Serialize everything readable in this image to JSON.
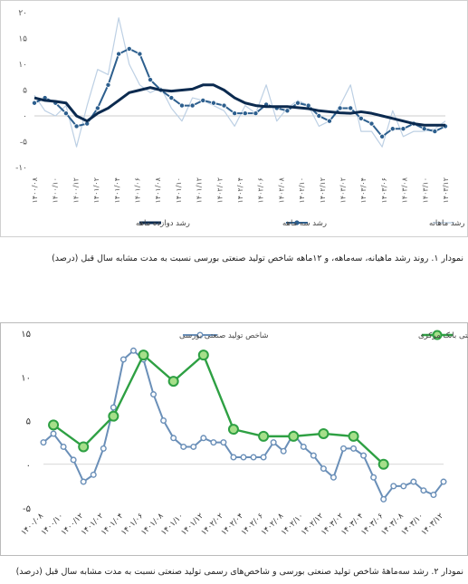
{
  "chart_data": [
    {
      "type": "line",
      "caption": "نمودار ۱. روند رشد ماهیانه، سه‌ماهه، و ۱۲ماهه شاخص تولید صنعتی بورسی نسبت به مدت مشابه سال قبل (درصد)",
      "y_ticks": [
        "۲۰",
        "۱۵",
        "۱۰",
        "۵",
        "۰",
        "-۵",
        "-۱۰"
      ],
      "y_values": [
        20,
        15,
        10,
        5,
        0,
        -5,
        -10
      ],
      "ylim": [
        -10,
        20
      ],
      "x_ticks": [
        "۱۴۰۰/۰۸",
        "۱۴۰۰/۱۰",
        "۱۴۰۰/۱۲",
        "۱۴۰۱/۰۲",
        "۱۴۰۱/۰۴",
        "۱۴۰۱/۰۶",
        "۱۴۰۱/۰۸",
        "۱۴۰۱/۱۰",
        "۱۴۰۱/۱۲",
        "۱۴۰۲/۰۲",
        "۱۴۰۲/۰۴",
        "۱۴۰۲/۰۶",
        "۱۴۰۲/۰۸",
        "۱۴۰۲/۱۰",
        "۱۴۰۲/۱۲",
        "۱۴۰۳/۰۲",
        "۱۴۰۳/۰۴",
        "۱۴۰۳/۰۶",
        "۱۴۰۳/۰۸",
        "۱۴۰۳/۱۰",
        "۱۴۰۳/۱۲"
      ],
      "legend_position": "bottom",
      "series": [
        {
          "name": "رشد دوازده ماهه",
          "color": "#0b2a4f",
          "style": "thick",
          "values": [
            3.5,
            3,
            2.8,
            2.5,
            0,
            -1,
            0.5,
            1.5,
            3,
            4.5,
            5,
            5.5,
            5,
            4.8,
            5,
            5.2,
            6,
            6,
            5,
            3.5,
            2.5,
            2,
            1.8,
            1.8,
            1.8,
            1.6,
            1.4,
            1,
            0.8,
            0.6,
            0.5,
            0.8,
            0.5,
            0,
            -0.5,
            -1,
            -1.5,
            -1.8,
            -1.8,
            -1.8
          ]
        },
        {
          "name": "رشد سه ماهه",
          "color": "#2d5f8e",
          "style": "markers",
          "values": [
            2.5,
            3.5,
            2.5,
            0.5,
            -2,
            -1.5,
            1.5,
            6,
            12,
            13,
            12,
            7,
            5,
            3.5,
            2,
            2,
            3,
            2.5,
            2,
            0.5,
            0.5,
            0.5,
            2.2,
            1.5,
            1,
            2.5,
            2,
            0,
            -1,
            1.5,
            1.5,
            -0.5,
            -1.5,
            -4,
            -2.5,
            -2.5,
            -1.5,
            -2.5,
            -3,
            -2
          ]
        },
        {
          "name": "رشد ماهانه",
          "color": "#bdd0e4",
          "style": "thin",
          "values": [
            4,
            1,
            0,
            2,
            -6,
            2,
            9,
            8,
            19,
            10,
            6,
            4.5,
            5.5,
            1.5,
            -1,
            3.5,
            3,
            2,
            1,
            -2,
            2,
            0.5,
            6,
            -1,
            1.5,
            3,
            2,
            -2,
            -1,
            2,
            6,
            -3,
            -3,
            -6,
            1,
            -4,
            -3,
            -3,
            -2.5,
            -1
          ]
        }
      ]
    },
    {
      "type": "line",
      "caption": "نمودار ۲. رشد سه‌ماهۀ شاخص تولید صنعتی بورسی و شاخص‌های رسمی تولید صنعتی نسبت به مدت مشابه سال قبل (درصد)",
      "y_ticks": [
        "۱۵",
        "۱۰",
        "۵",
        "۰",
        "-۵"
      ],
      "y_values": [
        15,
        10,
        5,
        0,
        -5
      ],
      "ylim": [
        -5,
        15
      ],
      "x_ticks": [
        "۱۴۰۰/۰۸",
        "۱۴۰۰/۱۰",
        "۱۴۰۰/۱۲",
        "۱۴۰۱/۰۲",
        "۱۴۰۱/۰۴",
        "۱۴۰۱/۰۶",
        "۱۴۰۱/۰۸",
        "۱۴۰۱/۱۰",
        "۱۴۰۱/۱۲",
        "۱۴۰۲/۰۲",
        "۱۴۰۲/۰۴",
        "۱۴۰۲/۰۶",
        "۱۴۰۲/۰۸",
        "۱۴۰۲/۱۰",
        "۱۴۰۲/۱۲",
        "۱۴۰۳/۰۲",
        "۱۴۰۳/۰۴",
        "۱۴۰۳/۰۶",
        "۱۴۰۳/۰۸",
        "۱۴۰۳/۱۰",
        "۱۴۰۳/۱۲"
      ],
      "legend_position": "top",
      "series": [
        {
          "name": "شاخص تولید صنعتی بورسی",
          "color": "#6a8fb8",
          "fill": "#ffffff",
          "style": "markers",
          "values": [
            2.5,
            3.5,
            2,
            0.5,
            -2,
            -1.2,
            1.8,
            6.5,
            12,
            13,
            12,
            8,
            5,
            3,
            2,
            2,
            3,
            2.5,
            2.5,
            0.8,
            0.8,
            0.8,
            0.8,
            2.5,
            1.5,
            3.5,
            2,
            1,
            -0.5,
            -1.5,
            1.8,
            1.8,
            1,
            -1.5,
            -4,
            -2.5,
            -2.5,
            -2,
            -3,
            -3.5,
            -2
          ]
        },
        {
          "name": "شاخص تولید کارگاه‌های بزرگ صنعتی بانک مرکزی",
          "color": "#2ea043",
          "fill": "#a6df8a",
          "style": "markers",
          "x_index": [
            1,
            4,
            7,
            10,
            13,
            16,
            19,
            22,
            25,
            28,
            31,
            34
          ],
          "values": [
            4.5,
            2,
            5.5,
            12.5,
            9.5,
            12.5,
            4,
            3.2,
            3.2,
            3.5,
            3.2,
            0
          ]
        }
      ]
    }
  ]
}
